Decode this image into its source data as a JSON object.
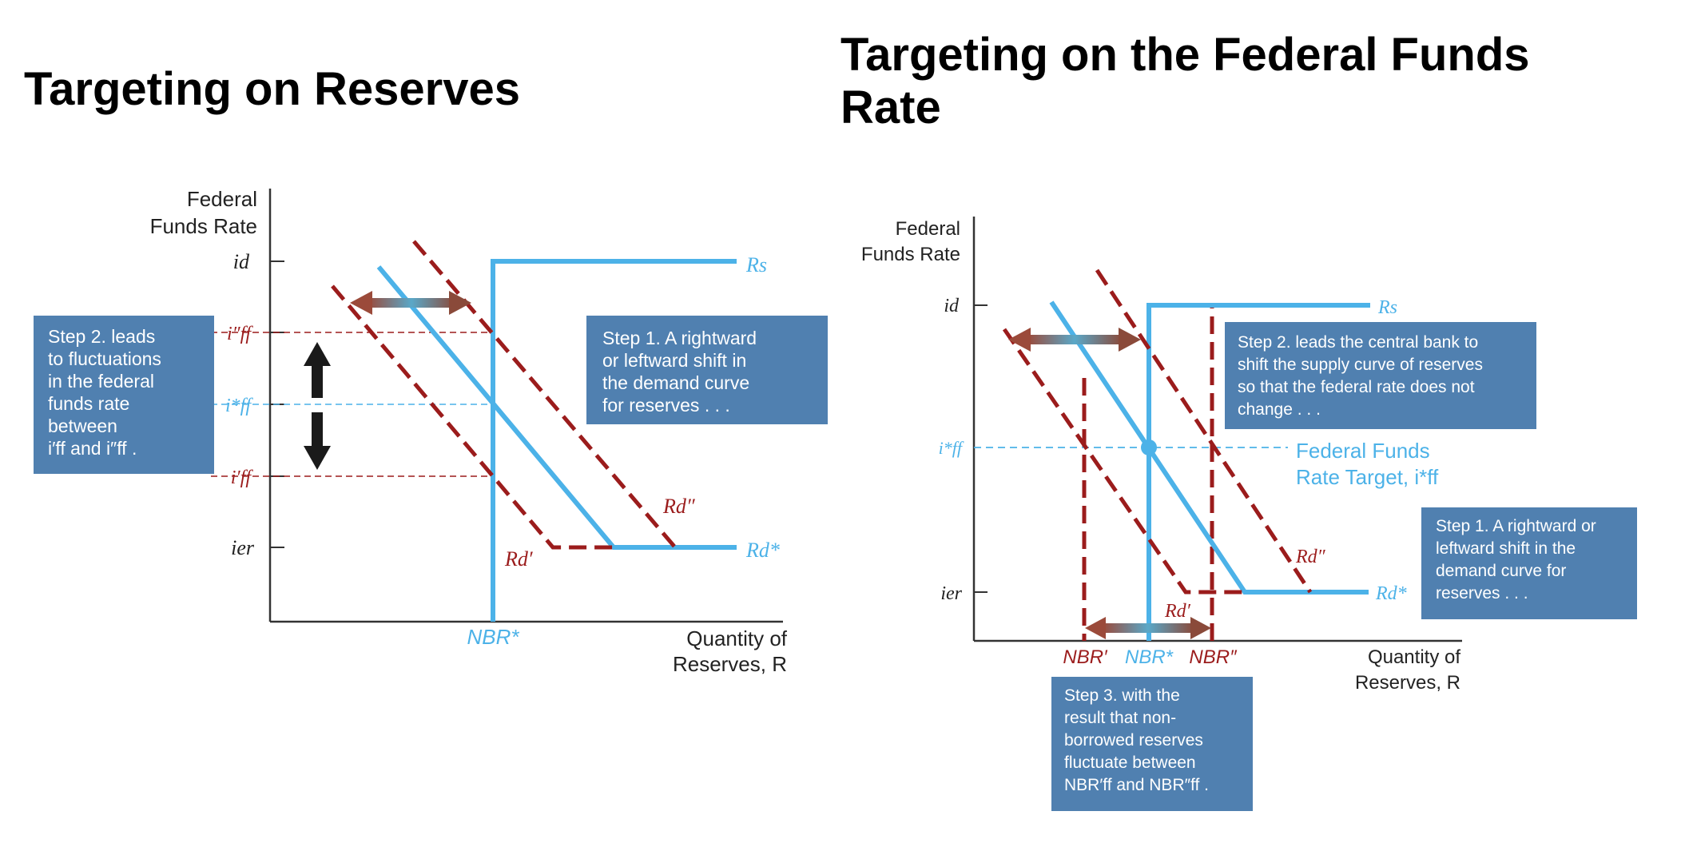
{
  "left": {
    "title": "Targeting on Reserves",
    "y_axis_label": [
      "Federal",
      "Funds Rate"
    ],
    "x_axis_label": [
      "Quantity of",
      "Reserves, R"
    ],
    "rate_labels": {
      "id": "id",
      "iff_double": "i″ff",
      "iff_star": "i*ff",
      "iff_single": "i′ff",
      "ier": "ier"
    },
    "curve_labels": {
      "rs": "Rs",
      "rd_star": "Rd*",
      "rd_double": "Rd″",
      "rd_single": "Rd′"
    },
    "nbr_label": "NBR*",
    "step1": [
      "Step 1. A rightward",
      "or leftward shift in",
      "the demand curve",
      "for reserves . . ."
    ],
    "step2": [
      "Step 2. leads",
      "to fluctuations",
      "in the federal",
      "funds rate",
      "between",
      "i′ff  and  i″ff ."
    ]
  },
  "right": {
    "title": [
      "Targeting on the Federal Funds",
      "Rate"
    ],
    "y_axis_label": [
      "Federal",
      "Funds Rate"
    ],
    "x_axis_label": [
      "Quantity of",
      "Reserves, R"
    ],
    "rate_labels": {
      "id": "id",
      "iff_star": "i*ff",
      "ier": "ier"
    },
    "curve_labels": {
      "rs": "Rs",
      "rd_star": "Rd*",
      "rd_double": "Rd″",
      "rd_single": "Rd′"
    },
    "nbr_labels": {
      "single": "NBR′",
      "star": "NBR*",
      "double": "NBR″"
    },
    "target_label": [
      "Federal Funds",
      "Rate Target, i*ff"
    ],
    "step1": [
      "Step 1. A rightward or",
      "leftward shift in the",
      "demand curve for",
      "reserves . . ."
    ],
    "step2": [
      "Step 2. leads the central bank to",
      "shift the supply curve of reserves",
      "so that the federal rate does not",
      "change . . ."
    ],
    "step3": [
      "Step 3. with the",
      "result that non-",
      "borrowed reserves",
      "fluctuate between",
      "NBR′ff  and  NBR″ff ."
    ]
  },
  "colors": {
    "blue": "#4cb2e8",
    "dark_red": "#9b1c1c",
    "box_blue": "#5080b0",
    "axis": "#333333"
  }
}
